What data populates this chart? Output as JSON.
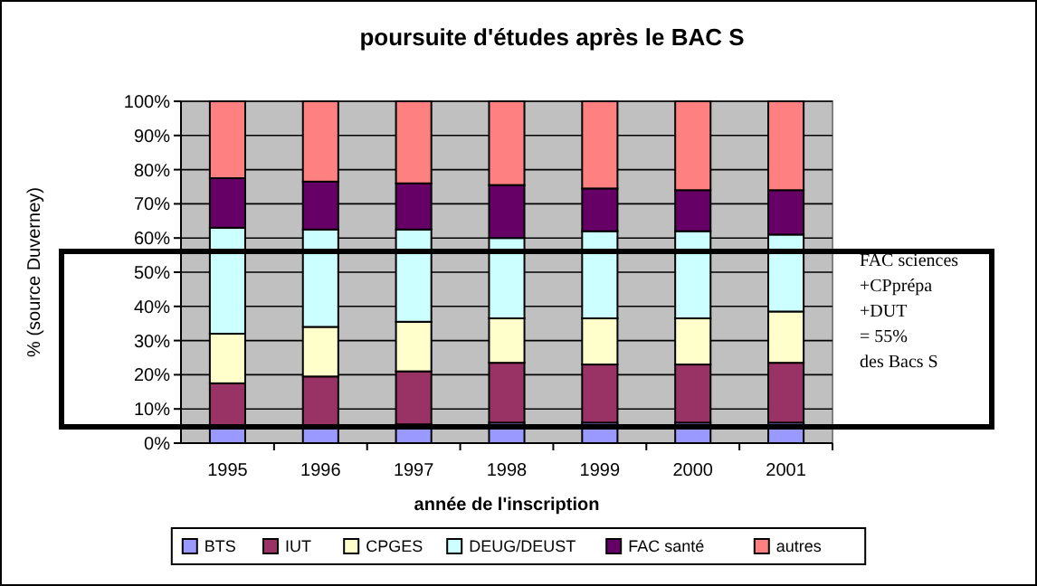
{
  "chart_data": {
    "type": "bar",
    "stacked": true,
    "title": "poursuite d'études après le BAC S",
    "xlabel": "année de l'inscription",
    "ylabel": "% (source Duverney)",
    "categories": [
      "1995",
      "1996",
      "1997",
      "1998",
      "1999",
      "2000",
      "2001"
    ],
    "series": [
      {
        "name": "BTS",
        "color": "#9999ff",
        "values": [
          4.5,
          5,
          5.5,
          6,
          6,
          6,
          6
        ]
      },
      {
        "name": "IUT",
        "color": "#993366",
        "values": [
          13,
          14.5,
          15.5,
          17.5,
          17,
          17,
          17.5
        ]
      },
      {
        "name": "CPGES",
        "color": "#ffffcc",
        "values": [
          14.5,
          14.5,
          14.5,
          13,
          13.5,
          13.5,
          15
        ]
      },
      {
        "name": "DEUG/DEUST",
        "color": "#ccffff",
        "values": [
          31,
          28.5,
          27,
          23.5,
          25.5,
          25.5,
          22.5
        ]
      },
      {
        "name": "FAC santé",
        "color": "#660066",
        "values": [
          14.5,
          14,
          13.5,
          15.5,
          12.5,
          12,
          13
        ]
      },
      {
        "name": "autres",
        "color": "#ff8080",
        "values": [
          22.5,
          23.5,
          24,
          24.5,
          25.5,
          26,
          26
        ]
      }
    ],
    "ylim": [
      0,
      100
    ],
    "yticks": [
      {
        "value": 0,
        "label": "0%"
      },
      {
        "value": 10,
        "label": "10%"
      },
      {
        "value": 20,
        "label": "20%"
      },
      {
        "value": 30,
        "label": "30%"
      },
      {
        "value": 40,
        "label": "40%"
      },
      {
        "value": 50,
        "label": "50%"
      },
      {
        "value": 60,
        "label": "60%"
      },
      {
        "value": 70,
        "label": "70%"
      },
      {
        "value": 80,
        "label": "80%"
      },
      {
        "value": 90,
        "label": "90%"
      },
      {
        "value": 100,
        "label": "100%"
      }
    ],
    "grid": "y",
    "legend": "bottom",
    "annotations": [
      "FAC sciences\n+CPprépa\n+DUT\n= 55%\ndes Bacs S"
    ]
  }
}
